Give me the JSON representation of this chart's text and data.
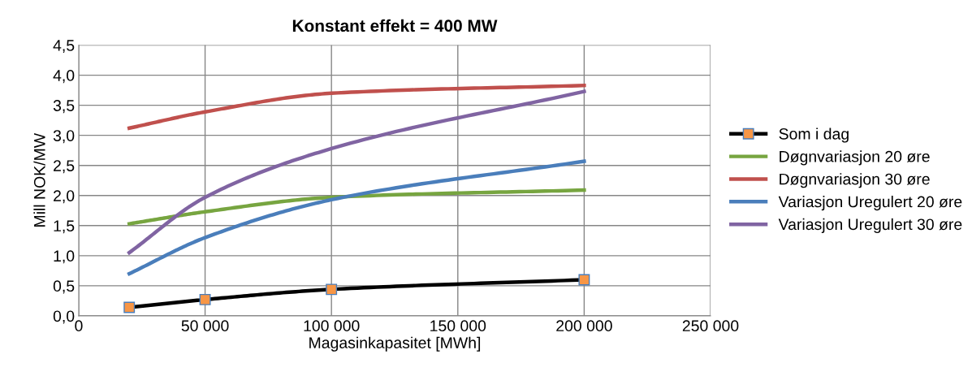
{
  "chart_data": {
    "type": "line",
    "title": "Konstant effekt = 400 MW",
    "xlabel": "Magasinkapasitet [MWh]",
    "ylabel": "Mill NOK/MW",
    "x": [
      20000,
      50000,
      100000,
      200000
    ],
    "series": [
      {
        "name": "Som i dag",
        "color": "#000000",
        "marker": "square",
        "values": [
          0.14,
          0.27,
          0.44,
          0.6
        ]
      },
      {
        "name": "Døgnvariasjon 20 øre",
        "color": "#77a540",
        "marker": "none",
        "values": [
          1.53,
          1.73,
          1.97,
          2.09
        ]
      },
      {
        "name": "Døgnvariasjon 30 øre",
        "color": "#c0504d",
        "marker": "none",
        "values": [
          3.12,
          3.39,
          3.7,
          3.83
        ]
      },
      {
        "name": "Variasjon Uregulert 20 øre",
        "color": "#4a7ebb",
        "marker": "none",
        "values": [
          0.7,
          1.3,
          1.93,
          2.57
        ]
      },
      {
        "name": "Variasjon Uregulert 30 øre",
        "color": "#8064a2",
        "marker": "none",
        "values": [
          1.05,
          1.97,
          2.78,
          3.73
        ]
      }
    ],
    "xlim": [
      0,
      250000
    ],
    "xticks": [
      {
        "value": 0,
        "label": "0"
      },
      {
        "value": 50000,
        "label": "50 000"
      },
      {
        "value": 100000,
        "label": "100 000"
      },
      {
        "value": 150000,
        "label": "150 000"
      },
      {
        "value": 200000,
        "label": "200 000"
      },
      {
        "value": 250000,
        "label": "250 000"
      }
    ],
    "ylim": [
      0,
      4.5
    ],
    "yticks": [
      {
        "value": 0,
        "label": "0,0"
      },
      {
        "value": 0.5,
        "label": "0,5"
      },
      {
        "value": 1,
        "label": "1,0"
      },
      {
        "value": 1.5,
        "label": "1,5"
      },
      {
        "value": 2,
        "label": "2,0"
      },
      {
        "value": 2.5,
        "label": "2,5"
      },
      {
        "value": 3,
        "label": "3,0"
      },
      {
        "value": 3.5,
        "label": "3,5"
      },
      {
        "value": 4,
        "label": "4,0"
      },
      {
        "value": 4.5,
        "label": "4,5"
      }
    ],
    "grid": true,
    "legend": "right",
    "line_style": "solid"
  }
}
